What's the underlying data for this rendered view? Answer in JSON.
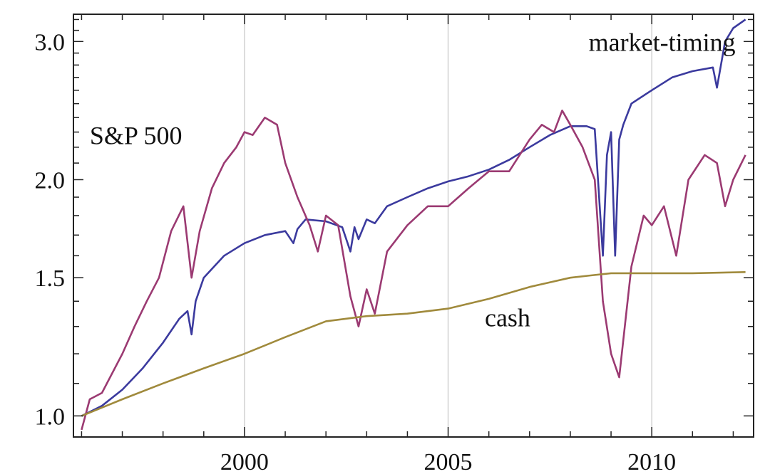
{
  "chart_data": {
    "type": "line",
    "title": "",
    "xlabel": "",
    "ylabel": "",
    "y_scale": "log",
    "xlim": [
      1995.8,
      2012.5
    ],
    "ylim": [
      0.94,
      3.25
    ],
    "x_ticks": [
      2000,
      2005,
      2010
    ],
    "x_tick_labels": [
      "2000",
      "2005",
      "2010"
    ],
    "y_ticks": [
      1.0,
      1.5,
      2.0,
      3.0
    ],
    "y_tick_labels": [
      "1.0",
      "1.5",
      "2.0",
      "3.0"
    ],
    "grid": "vertical lines at 2000, 2005, 2010",
    "legend": "none; series labeled directly on the plot",
    "series": [
      {
        "name": "market-timing",
        "color": "#3b3a9e",
        "x": [
          1996.0,
          1996.5,
          1997.0,
          1997.5,
          1998.0,
          1998.4,
          1998.6,
          1998.7,
          1998.8,
          1999.0,
          1999.5,
          2000.0,
          2000.5,
          2001.0,
          2001.2,
          2001.3,
          2001.5,
          2002.0,
          2002.4,
          2002.6,
          2002.7,
          2002.8,
          2003.0,
          2003.2,
          2003.5,
          2004.0,
          2004.5,
          2005.0,
          2005.5,
          2006.0,
          2006.5,
          2007.0,
          2007.5,
          2008.0,
          2008.4,
          2008.6,
          2008.8,
          2008.9,
          2009.0,
          2009.1,
          2009.2,
          2009.3,
          2009.5,
          2010.0,
          2010.5,
          2011.0,
          2011.5,
          2011.6,
          2011.8,
          2012.0,
          2012.3
        ],
        "y": [
          1.0,
          1.03,
          1.08,
          1.15,
          1.24,
          1.33,
          1.36,
          1.27,
          1.4,
          1.5,
          1.6,
          1.66,
          1.7,
          1.72,
          1.66,
          1.73,
          1.78,
          1.77,
          1.74,
          1.62,
          1.74,
          1.68,
          1.78,
          1.76,
          1.85,
          1.9,
          1.95,
          1.99,
          2.02,
          2.06,
          2.12,
          2.2,
          2.28,
          2.34,
          2.34,
          2.32,
          1.6,
          2.15,
          2.3,
          1.6,
          2.25,
          2.35,
          2.5,
          2.6,
          2.7,
          2.75,
          2.78,
          2.62,
          3.0,
          3.12,
          3.2
        ]
      },
      {
        "name": "S&P 500",
        "color": "#9b3a72",
        "x": [
          1996.0,
          1996.2,
          1996.5,
          1997.0,
          1997.3,
          1997.6,
          1997.9,
          1998.2,
          1998.5,
          1998.7,
          1998.9,
          1999.2,
          1999.5,
          1999.8,
          2000.0,
          2000.2,
          2000.5,
          2000.8,
          2001.0,
          2001.3,
          2001.6,
          2001.8,
          2002.0,
          2002.3,
          2002.6,
          2002.8,
          2003.0,
          2003.2,
          2003.5,
          2004.0,
          2004.5,
          2005.0,
          2005.5,
          2006.0,
          2006.5,
          2007.0,
          2007.3,
          2007.6,
          2007.8,
          2008.0,
          2008.3,
          2008.6,
          2008.8,
          2009.0,
          2009.2,
          2009.5,
          2009.8,
          2010.0,
          2010.3,
          2010.6,
          2010.9,
          2011.3,
          2011.6,
          2011.8,
          2012.0,
          2012.3
        ],
        "y": [
          0.96,
          1.05,
          1.07,
          1.2,
          1.3,
          1.4,
          1.5,
          1.72,
          1.85,
          1.5,
          1.72,
          1.95,
          2.1,
          2.2,
          2.3,
          2.28,
          2.4,
          2.35,
          2.1,
          1.9,
          1.75,
          1.62,
          1.8,
          1.75,
          1.42,
          1.3,
          1.45,
          1.35,
          1.62,
          1.75,
          1.85,
          1.85,
          1.95,
          2.05,
          2.05,
          2.25,
          2.35,
          2.3,
          2.45,
          2.35,
          2.2,
          2.0,
          1.4,
          1.2,
          1.12,
          1.55,
          1.8,
          1.75,
          1.85,
          1.6,
          2.0,
          2.15,
          2.1,
          1.85,
          2.0,
          2.15
        ]
      },
      {
        "name": "cash",
        "color": "#a08a3c",
        "x": [
          1996.0,
          1997.0,
          1998.0,
          1999.0,
          2000.0,
          2001.0,
          2002.0,
          2003.0,
          2004.0,
          2005.0,
          2006.0,
          2007.0,
          2008.0,
          2008.5,
          2009.0,
          2010.0,
          2011.0,
          2012.3
        ],
        "y": [
          1.0,
          1.05,
          1.1,
          1.15,
          1.2,
          1.26,
          1.32,
          1.34,
          1.35,
          1.37,
          1.41,
          1.46,
          1.5,
          1.51,
          1.52,
          1.52,
          1.52,
          1.525
        ]
      }
    ],
    "annotations": [
      {
        "text": "market-timing",
        "x": 2008.45,
        "y": 2.92
      },
      {
        "text": "S&P 500",
        "x": 1996.2,
        "y": 2.22
      },
      {
        "text": "cash",
        "x": 2005.9,
        "y": 1.3
      }
    ]
  }
}
